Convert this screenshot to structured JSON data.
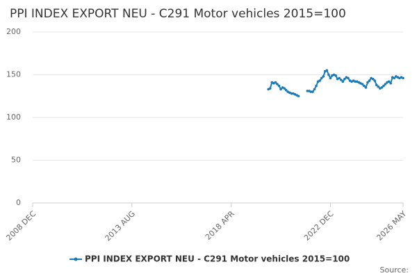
{
  "chart_data": {
    "type": "line",
    "title": "PPI INDEX EXPORT NEU - C291 Motor vehicles 2015=100",
    "source": "Source:",
    "x": [
      "2020-01",
      "2020-02",
      "2020-03",
      "2020-04",
      "2020-05",
      "2020-06",
      "2020-07",
      "2020-08",
      "2020-09",
      "2020-10",
      "2020-11",
      "2020-12",
      "2021-01",
      "2021-02",
      "2021-03",
      "2021-04",
      "2021-05",
      "2021-06",
      "2021-07",
      "2021-08",
      "2021-09",
      "2021-10",
      "2021-11",
      "2021-12",
      "2022-01",
      "2022-02",
      "2022-03",
      "2022-04",
      "2022-05",
      "2022-06",
      "2022-07",
      "2022-08",
      "2022-09",
      "2022-10",
      "2022-11",
      "2022-12",
      "2023-01",
      "2023-02",
      "2023-03",
      "2023-04",
      "2023-05",
      "2023-06",
      "2023-07",
      "2023-08",
      "2023-09",
      "2023-10",
      "2023-11",
      "2023-12",
      "2024-01",
      "2024-02",
      "2024-03",
      "2024-04",
      "2024-05",
      "2024-06",
      "2024-07",
      "2024-08",
      "2024-09",
      "2024-10",
      "2024-11",
      "2024-12",
      "2025-01",
      "2025-02",
      "2025-03",
      "2025-04",
      "2025-05",
      "2025-06",
      "2025-07",
      "2025-08",
      "2025-09",
      "2025-10",
      "2025-11",
      "2025-12",
      "2026-01",
      "2026-02",
      "2026-03",
      "2026-04",
      "2026-05"
    ],
    "series": [
      {
        "name": "PPI INDEX EXPORT NEU - C291 Motor vehicles 2015=100",
        "color": "#1a7ab8",
        "values": [
          133,
          134,
          141,
          140,
          141,
          139,
          137,
          133,
          135,
          134,
          132,
          130,
          129,
          128,
          128,
          127,
          126,
          125,
          null,
          null,
          null,
          null,
          131,
          131,
          130,
          130,
          133,
          137,
          142,
          143,
          146,
          148,
          154,
          155,
          150,
          146,
          149,
          150,
          149,
          145,
          146,
          144,
          142,
          145,
          147,
          146,
          143,
          142,
          143,
          142,
          142,
          141,
          140,
          139,
          137,
          135,
          141,
          143,
          146,
          145,
          143,
          138,
          136,
          134,
          135,
          137,
          139,
          141,
          142,
          140,
          147,
          146,
          148,
          147,
          146,
          147,
          146
        ]
      }
    ],
    "xlim": [
      "2008-12",
      "2026-05"
    ],
    "xticks": [
      {
        "value": "2008-12",
        "label": "2008 DEC"
      },
      {
        "value": "2013-08",
        "label": "2013 AUG"
      },
      {
        "value": "2018-04",
        "label": "2018 APR"
      },
      {
        "value": "2022-12",
        "label": "2022 DEC"
      },
      {
        "value": "2026-05",
        "label": "2026 MAY"
      }
    ],
    "ylim": [
      0,
      200
    ],
    "yticks": [
      0,
      50,
      100,
      150,
      200
    ],
    "grid": true
  }
}
